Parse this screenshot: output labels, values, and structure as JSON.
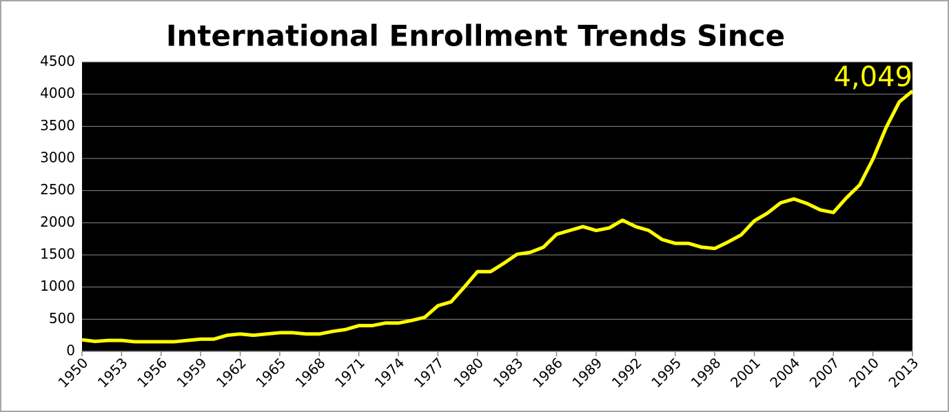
{
  "chart_data": {
    "type": "line",
    "title": "International Enrollment Trends Since",
    "x": [
      1950,
      1951,
      1952,
      1953,
      1954,
      1955,
      1956,
      1957,
      1958,
      1959,
      1960,
      1961,
      1962,
      1963,
      1964,
      1965,
      1966,
      1967,
      1968,
      1969,
      1970,
      1971,
      1972,
      1973,
      1974,
      1975,
      1976,
      1977,
      1978,
      1979,
      1980,
      1981,
      1982,
      1983,
      1984,
      1985,
      1986,
      1987,
      1988,
      1989,
      1990,
      1991,
      1992,
      1993,
      1994,
      1995,
      1996,
      1997,
      1998,
      1999,
      2000,
      2001,
      2002,
      2003,
      2004,
      2005,
      2006,
      2007,
      2008,
      2009,
      2010,
      2011,
      2012,
      2013
    ],
    "series": [
      {
        "color": "#ffff00",
        "values": [
          180,
          155,
          170,
          170,
          150,
          150,
          150,
          150,
          170,
          190,
          190,
          250,
          270,
          250,
          270,
          290,
          290,
          270,
          270,
          310,
          340,
          400,
          400,
          440,
          440,
          480,
          530,
          710,
          770,
          1000,
          1240,
          1240,
          1370,
          1510,
          1540,
          1620,
          1820,
          1880,
          1940,
          1880,
          1920,
          2040,
          1940,
          1880,
          1740,
          1680,
          1680,
          1620,
          1600,
          1700,
          1810,
          2030,
          2150,
          2310,
          2370,
          2300,
          2200,
          2160,
          2390,
          2590,
          2990,
          3480,
          3880,
          4049
        ]
      }
    ],
    "xlim": [
      1950,
      2013
    ],
    "xticks": [
      1950,
      1953,
      1956,
      1959,
      1962,
      1965,
      1968,
      1971,
      1974,
      1977,
      1980,
      1983,
      1986,
      1989,
      1992,
      1995,
      1998,
      2001,
      2004,
      2007,
      2010,
      2013
    ],
    "ylim": [
      0,
      4500
    ],
    "yticks": [
      0,
      500,
      1000,
      1500,
      2000,
      2500,
      3000,
      3500,
      4000,
      4500
    ],
    "grid": true,
    "annotations": [
      {
        "text": "4,049",
        "x": 2013,
        "y": 4049,
        "color": "#ffff00"
      }
    ]
  }
}
